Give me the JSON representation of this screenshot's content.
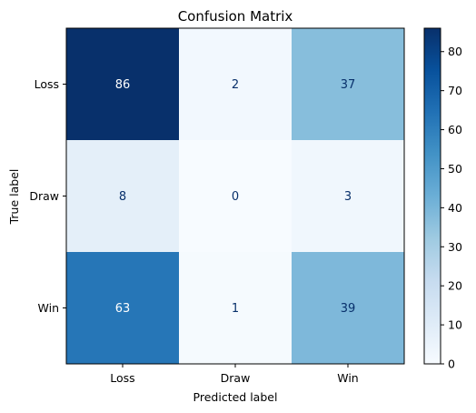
{
  "chart_data": {
    "type": "heatmap",
    "title": "Confusion Matrix",
    "xlabel": "Predicted label",
    "ylabel": "True label",
    "row_labels": [
      "Loss",
      "Draw",
      "Win"
    ],
    "col_labels": [
      "Loss",
      "Draw",
      "Win"
    ],
    "values": [
      [
        86,
        2,
        37
      ],
      [
        8,
        0,
        3
      ],
      [
        63,
        1,
        39
      ]
    ],
    "vmin": 0,
    "vmax": 86,
    "colormap": "Blues",
    "colorbar_ticks": [
      0,
      10,
      20,
      30,
      40,
      50,
      60,
      70,
      80
    ],
    "grid": false,
    "colors": {
      "light_text": "#ffffff",
      "dark_text": "#08306b"
    }
  }
}
